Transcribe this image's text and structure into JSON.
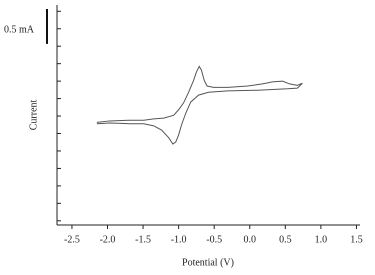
{
  "chart_data": {
    "type": "line",
    "x_label": "Potential (V)",
    "y_label": "Current",
    "x": [
      -2.15,
      -1.97,
      -1.69,
      -1.49,
      -1.35,
      -1.21,
      -1.07,
      -1.0,
      -0.93,
      -0.86,
      -0.79,
      -0.75,
      -0.71,
      -0.68,
      -0.64,
      -0.6,
      -0.51,
      -0.31,
      -0.03,
      0.18,
      0.32,
      0.46,
      0.56,
      0.67,
      0.74,
      0.67,
      0.53,
      0.11,
      -0.31,
      -0.58,
      -0.72,
      -0.83,
      -0.9,
      -0.96,
      -1.0,
      -1.04,
      -1.08,
      -1.14,
      -1.24,
      -1.35,
      -1.49,
      -1.69,
      -1.97,
      -2.15
    ],
    "values": [
      -0.09,
      -0.07,
      -0.06,
      -0.06,
      -0.04,
      -0.03,
      0.01,
      0.09,
      0.19,
      0.34,
      0.51,
      0.63,
      0.71,
      0.66,
      0.51,
      0.43,
      0.41,
      0.41,
      0.43,
      0.46,
      0.49,
      0.5,
      0.46,
      0.44,
      0.47,
      0.4,
      0.39,
      0.37,
      0.36,
      0.34,
      0.3,
      0.2,
      0.04,
      -0.13,
      -0.27,
      -0.37,
      -0.4,
      -0.31,
      -0.2,
      -0.14,
      -0.11,
      -0.11,
      -0.1,
      -0.11
    ],
    "color": "#555555",
    "xlim": [
      -2.71,
      1.55
    ],
    "xticks": [
      -2.5,
      {
        "value": -2.0,
        "label": "-2.0"
      },
      -1.5,
      {
        "value": -1.0,
        "label": "-1.0"
      },
      -0.5,
      {
        "value": 0.0,
        "label": "0.0"
      },
      0.5,
      {
        "value": 1.0,
        "label": "1.0"
      },
      1.5
    ],
    "ylim": [
      -1.56,
      1.59
    ],
    "yticks": [
      -1.5,
      -1.25,
      -1,
      -0.75,
      -0.5,
      -0.25,
      0,
      0.25,
      0.5,
      0.75,
      1,
      1.25,
      1.5
    ],
    "scale_bar": {
      "label": "0.5 mA",
      "value": 0.5
    }
  }
}
